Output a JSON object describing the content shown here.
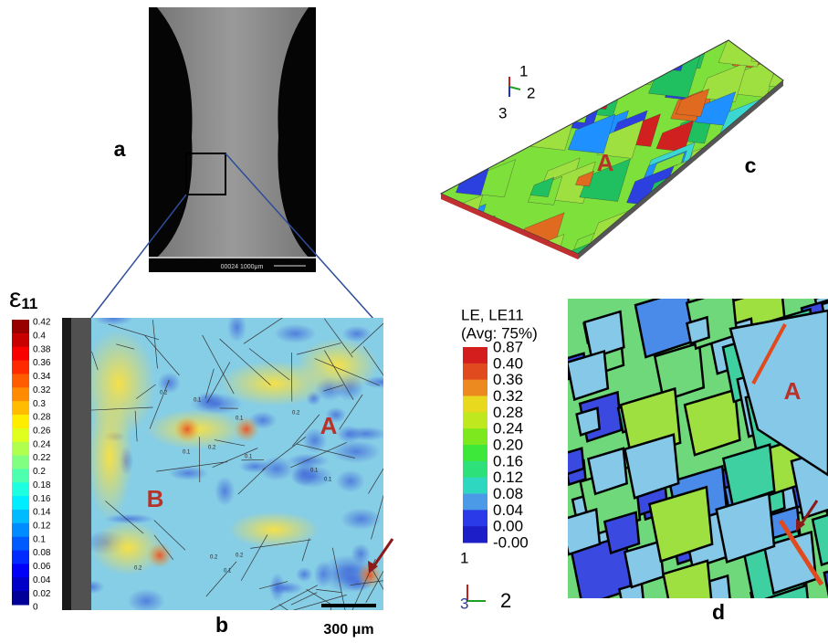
{
  "panel_a": {
    "label": "a",
    "sem_caption": "00024  1000μm"
  },
  "panel_b": {
    "label": "b",
    "colorbar_title": "ε",
    "colorbar_subscript": "11",
    "colorbar_labels": [
      "0.42",
      "0.4",
      "0.38",
      "0.36",
      "0.34",
      "0.32",
      "0.3",
      "0.28",
      "0.26",
      "0.24",
      "0.22",
      "0.2",
      "0.18",
      "0.16",
      "0.14",
      "0.12",
      "0.1",
      "0.08",
      "0.06",
      "0.04",
      "0.02",
      "0"
    ],
    "grain_labels": [
      "A",
      "B"
    ],
    "contour_labels": [
      "0.2",
      "0.1",
      "0.1",
      "0.2",
      "0.1",
      "0.2",
      "0.1",
      "0.1",
      "0.1",
      "0.2",
      "0.2",
      "0.2",
      "0.1"
    ],
    "scale_bar": "300 μm"
  },
  "panel_c": {
    "label": "c",
    "axes": [
      "1",
      "2",
      "3"
    ],
    "grain_label": "A"
  },
  "panel_d": {
    "label": "d",
    "legend_title": "LE, LE11",
    "legend_subtitle": "(Avg: 75%)",
    "colorbar_labels": [
      "0.87",
      "0.40",
      "0.36",
      "0.32",
      "0.28",
      "0.24",
      "0.20",
      "0.16",
      "0.12",
      "0.08",
      "0.04",
      "0.00",
      "-0.00"
    ],
    "axes": [
      "1",
      "2",
      "3"
    ],
    "grain_label": "A"
  }
}
